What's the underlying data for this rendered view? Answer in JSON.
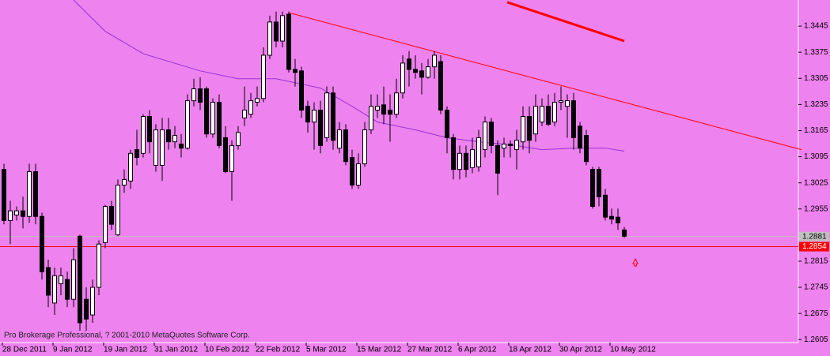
{
  "chart_data": {
    "type": "candlestick",
    "background": "#ee82ee",
    "up_color": "#ffffff",
    "down_color": "#000000",
    "categories": [
      "28 Dec 2011",
      null,
      null,
      null,
      null,
      null,
      null,
      null,
      "9 Jan 2012",
      null,
      null,
      null,
      null,
      null,
      null,
      null,
      "19 Jan 2012",
      null,
      null,
      null,
      null,
      null,
      null,
      null,
      "31 Jan 2012",
      null,
      null,
      null,
      null,
      null,
      null,
      null,
      "10 Feb 2012",
      null,
      null,
      null,
      null,
      null,
      null,
      null,
      "22 Feb 2012",
      null,
      null,
      null,
      null,
      null,
      null,
      null,
      "5 Mar 2012",
      null,
      null,
      null,
      null,
      null,
      null,
      null,
      "15 Mar 2012",
      null,
      null,
      null,
      null,
      null,
      null,
      null,
      "27 Mar 2012",
      null,
      null,
      null,
      null,
      null,
      null,
      null,
      "6 Apr 2012",
      null,
      null,
      null,
      null,
      null,
      null,
      null,
      "18 Apr 2012",
      null,
      null,
      null,
      null,
      null,
      null,
      null,
      "30 Apr 2012",
      null,
      null,
      null,
      null,
      null,
      null,
      null,
      "10 May 2012",
      null,
      null
    ],
    "open": [
      1.3061,
      1.2924,
      1.2939,
      1.295,
      1.2935,
      1.3055,
      1.2935,
      1.2798,
      1.2703,
      1.2755,
      1.2766,
      1.2713,
      1.2882,
      1.2713,
      1.2671,
      1.2745,
      1.2865,
      1.2962,
      1.2886,
      1.3019,
      1.303,
      1.3114,
      1.3104,
      1.3203,
      1.3072,
      1.3072,
      1.3167,
      1.3135,
      1.3129,
      1.3118,
      1.3245,
      1.3277,
      1.3277,
      1.3156,
      1.3241,
      1.3146,
      1.3055,
      1.3125,
      1.3199,
      1.3209,
      1.3241,
      1.3251,
      1.3367,
      1.3456,
      1.3405,
      1.3477,
      1.3329,
      1.3325,
      1.323,
      1.3188,
      1.322,
      1.3146,
      1.3266,
      1.3118,
      1.3167,
      1.3093,
      1.3019,
      1.3076,
      1.3167,
      1.322,
      1.3234,
      1.322,
      1.3209,
      1.3266,
      1.3357,
      1.3329,
      1.3325,
      1.3308,
      1.3336,
      1.335,
      1.322,
      1.3146,
      1.3061,
      1.3104,
      1.3066,
      1.3068,
      1.3114,
      1.3188,
      1.3125,
      1.3118,
      1.3129,
      1.3114,
      1.3135,
      1.3203,
      1.3156,
      1.3188,
      1.323,
      1.3188,
      1.3241,
      1.323,
      1.3245,
      1.3177,
      1.3152,
      1.3061,
      1.3061,
      1.2992,
      1.2935,
      1.2933,
      1.2899
    ],
    "high": [
      1.3076,
      1.2977,
      1.2962,
      1.2988,
      1.3076,
      1.3076,
      1.2945,
      1.2819,
      1.2798,
      1.2798,
      1.2787,
      1.285,
      1.2886,
      1.2745,
      1.2766,
      1.2871,
      1.2966,
      1.2977,
      1.3034,
      1.3061,
      1.3114,
      1.3167,
      1.3209,
      1.322,
      1.3182,
      1.3199,
      1.3199,
      1.3177,
      1.3156,
      1.3262,
      1.3304,
      1.3308,
      1.3283,
      1.3251,
      1.3262,
      1.3177,
      1.3139,
      1.3177,
      1.3283,
      1.3266,
      1.3283,
      1.3388,
      1.3473,
      1.3484,
      1.3484,
      1.3484,
      1.3357,
      1.3336,
      1.3245,
      1.3241,
      1.3245,
      1.3283,
      1.3283,
      1.3188,
      1.3182,
      1.3114,
      1.3104,
      1.3188,
      1.3262,
      1.3262,
      1.3283,
      1.3262,
      1.3304,
      1.3367,
      1.3378,
      1.3367,
      1.3346,
      1.3357,
      1.3378,
      1.3367,
      1.323,
      1.3156,
      1.3125,
      1.3125,
      1.3146,
      1.3167,
      1.3203,
      1.3199,
      1.3139,
      1.3146,
      1.3139,
      1.3167,
      1.323,
      1.323,
      1.3262,
      1.3251,
      1.3262,
      1.3266,
      1.3283,
      1.3262,
      1.3266,
      1.3188,
      1.3167,
      1.3068,
      1.3068,
      1.3009,
      1.2956,
      1.2956,
      1.2907
    ],
    "low": [
      1.2914,
      1.2861,
      1.2924,
      1.2903,
      1.2918,
      1.2914,
      1.2766,
      1.2692,
      1.2671,
      1.2724,
      1.2692,
      1.2692,
      1.2629,
      1.2629,
      1.265,
      1.2724,
      1.285,
      1.2899,
      1.2882,
      1.2998,
      1.3009,
      1.3072,
      1.3093,
      1.3104,
      1.3055,
      1.303,
      1.3114,
      1.3118,
      1.3093,
      1.3114,
      1.323,
      1.322,
      1.3146,
      1.3146,
      1.3118,
      1.3051,
      1.2977,
      1.3114,
      1.3177,
      1.3199,
      1.323,
      1.3241,
      1.3357,
      1.3388,
      1.3388,
      1.3321,
      1.3283,
      1.3199,
      1.316,
      1.3114,
      1.3104,
      1.3135,
      1.3114,
      1.3104,
      1.3072,
      1.3009,
      1.3009,
      1.3068,
      1.3156,
      1.3199,
      1.3182,
      1.3135,
      1.3199,
      1.3251,
      1.3283,
      1.3304,
      1.3262,
      1.3304,
      1.3304,
      1.3209,
      1.3104,
      1.3034,
      1.3034,
      1.304,
      1.3051,
      1.3055,
      1.3093,
      1.3104,
      1.2992,
      1.3093,
      1.3093,
      1.3061,
      1.3114,
      1.3104,
      1.3135,
      1.3177,
      1.3177,
      1.3177,
      1.322,
      1.3146,
      1.3114,
      1.3104,
      1.3072,
      1.2956,
      1.2962,
      1.2924,
      1.2914,
      1.2899,
      1.2878
    ],
    "close": [
      1.2924,
      1.295,
      1.295,
      1.2935,
      1.3055,
      1.2935,
      1.2787,
      1.2724,
      1.2776,
      1.2776,
      1.2713,
      1.2819,
      1.265,
      1.266,
      1.2745,
      1.2861,
      1.2962,
      1.2914,
      1.3019,
      1.3034,
      1.3104,
      1.3093,
      1.3203,
      1.3135,
      1.3167,
      1.3167,
      1.3135,
      1.3152,
      1.3118,
      1.3245,
      1.3277,
      1.3241,
      1.3156,
      1.3241,
      1.3125,
      1.3055,
      1.3125,
      1.316,
      1.322,
      1.3245,
      1.3251,
      1.3367,
      1.3456,
      1.3405,
      1.3473,
      1.3329,
      1.3321,
      1.322,
      1.3188,
      1.322,
      1.3125,
      1.3266,
      1.3139,
      1.3167,
      1.3082,
      1.3019,
      1.3076,
      1.3167,
      1.323,
      1.323,
      1.3209,
      1.3209,
      1.3266,
      1.3346,
      1.3329,
      1.3321,
      1.3308,
      1.3336,
      1.3367,
      1.322,
      1.3146,
      1.3061,
      1.3104,
      1.3061,
      1.3114,
      1.3146,
      1.3188,
      1.3125,
      1.3051,
      1.3129,
      1.3125,
      1.3139,
      1.3203,
      1.3139,
      1.323,
      1.323,
      1.3182,
      1.3241,
      1.3245,
      1.3245,
      1.3146,
      1.3118,
      1.3082,
      1.2962,
      1.2988,
      1.2933,
      1.2928,
      1.2918,
      1.2882
    ],
    "ylim": [
      1.2597,
      1.3515
    ],
    "yticks": [
      1.3445,
      1.3375,
      1.3305,
      1.3235,
      1.3165,
      1.3095,
      1.3025,
      1.2955,
      1.2815,
      1.2745,
      1.2675,
      1.2605
    ],
    "moving_average": {
      "color": "#9b30d9",
      "x": [
        11,
        16,
        22,
        31,
        37,
        43,
        50,
        55,
        59,
        65,
        70,
        75,
        80,
        85,
        90,
        95,
        98
      ],
      "values": [
        1.3515,
        1.3431,
        1.3371,
        1.3325,
        1.3304,
        1.3304,
        1.3279,
        1.323,
        1.3188,
        1.3167,
        1.3146,
        1.3135,
        1.3127,
        1.3114,
        1.3118,
        1.3118,
        1.311
      ]
    },
    "trendlines": [
      {
        "color": "#ff0000",
        "width": 1,
        "x": [
          45,
          126
        ],
        "values": [
          1.3481,
          1.3114
        ]
      },
      {
        "color": "#ff0000",
        "width": 3,
        "x": [
          79.5,
          98
        ],
        "values": [
          1.3509,
          1.3405
        ]
      }
    ],
    "price_lines": [
      {
        "value": 1.2881,
        "color": "#c0c0c0"
      },
      {
        "value": 1.2854,
        "color": "#ff0000"
      }
    ],
    "footer_text": "Pro Brokerage Professional, ? 2001-2010 MetaQuotes Software Corp."
  }
}
